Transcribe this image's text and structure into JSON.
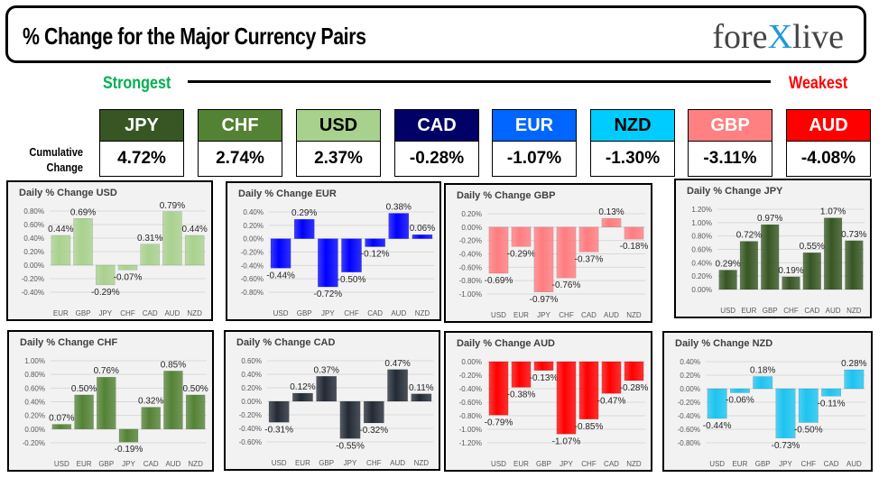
{
  "header": {
    "title": "% Change for the Major Currency Pairs",
    "logo": "forexlive"
  },
  "ranking": {
    "strongest_label": "Strongest",
    "weakest_label": "Weakest",
    "cumulative_label_1": "Cumulative",
    "cumulative_label_2": "Change",
    "currencies": [
      {
        "code": "JPY",
        "value": "4.72%",
        "color": "#375623",
        "text": "#ffffff"
      },
      {
        "code": "CHF",
        "value": "2.74%",
        "color": "#548235",
        "text": "#ffffff"
      },
      {
        "code": "USD",
        "value": "2.37%",
        "color": "#a9d18e",
        "text": "#000000"
      },
      {
        "code": "CAD",
        "value": "-0.28%",
        "color": "#000066",
        "text": "#ffffff"
      },
      {
        "code": "EUR",
        "value": "-1.07%",
        "color": "#0066ff",
        "text": "#ffffff"
      },
      {
        "code": "NZD",
        "value": "-1.30%",
        "color": "#00ccff",
        "text": "#000000"
      },
      {
        "code": "GBP",
        "value": "-3.11%",
        "color": "#ff8080",
        "text": "#ffffff"
      },
      {
        "code": "AUD",
        "value": "-4.08%",
        "color": "#ff0000",
        "text": "#ffffff"
      }
    ]
  },
  "chart_data": [
    {
      "type": "bar",
      "title": "Daily % Change USD",
      "categories": [
        "EUR",
        "GBP",
        "JPY",
        "CHF",
        "CAD",
        "AUD",
        "NZD"
      ],
      "values": [
        0.44,
        0.69,
        -0.29,
        -0.07,
        0.31,
        0.79,
        0.44
      ],
      "ylim": [
        -0.4,
        0.8
      ],
      "ystep": 0.2,
      "color": "#a9d18e",
      "grid": true
    },
    {
      "type": "bar",
      "title": "Daily % Change EUR",
      "categories": [
        "USD",
        "GBP",
        "JPY",
        "CHF",
        "CAD",
        "AUD",
        "NZD"
      ],
      "values": [
        -0.44,
        0.29,
        -0.72,
        -0.5,
        -0.12,
        0.38,
        0.06
      ],
      "ylim": [
        -0.8,
        0.4
      ],
      "ystep": 0.2,
      "color": "#0000ff",
      "grid": true
    },
    {
      "type": "bar",
      "title": "Daily % Change GBP",
      "categories": [
        "USD",
        "EUR",
        "JPY",
        "CHF",
        "CAD",
        "AUD",
        "NZD"
      ],
      "values": [
        -0.69,
        -0.29,
        -0.97,
        -0.76,
        -0.37,
        0.13,
        -0.18
      ],
      "ylim": [
        -1.0,
        0.2
      ],
      "ystep": 0.2,
      "color": "#ff7c80",
      "grid": true
    },
    {
      "type": "bar",
      "title": "Daily % Change JPY",
      "categories": [
        "USD",
        "EUR",
        "GBP",
        "CHF",
        "CAD",
        "AUD",
        "NZD"
      ],
      "values": [
        0.29,
        0.72,
        0.97,
        0.19,
        0.55,
        1.07,
        0.73
      ],
      "ylim": [
        0,
        1.2
      ],
      "ystep": 0.2,
      "color": "#375623",
      "grid": true
    },
    {
      "type": "bar",
      "title": "Daily % Change CHF",
      "categories": [
        "USD",
        "EUR",
        "GBP",
        "JPY",
        "CAD",
        "AUD",
        "NZD"
      ],
      "values": [
        0.07,
        0.5,
        0.76,
        -0.19,
        0.32,
        0.85,
        0.5
      ],
      "ylim": [
        -0.2,
        1.0
      ],
      "ystep": 0.2,
      "color": "#548235",
      "grid": true
    },
    {
      "type": "bar",
      "title": "Daily % Change CAD",
      "categories": [
        "USD",
        "EUR",
        "GBP",
        "JPY",
        "CHF",
        "AUD",
        "NZD"
      ],
      "values": [
        -0.31,
        0.12,
        0.37,
        -0.55,
        -0.32,
        0.47,
        0.11
      ],
      "ylim": [
        -0.6,
        0.6
      ],
      "ystep": 0.2,
      "color": "#222a35",
      "grid": true
    },
    {
      "type": "bar",
      "title": "Daily % Change AUD",
      "categories": [
        "USD",
        "EUR",
        "GBP",
        "JPY",
        "CHF",
        "CAD",
        "NZD"
      ],
      "values": [
        -0.79,
        -0.38,
        -0.13,
        -1.07,
        -0.85,
        -0.47,
        -0.28
      ],
      "ylim": [
        -1.2,
        0
      ],
      "ystep": 0.2,
      "color": "#ff0000",
      "grid": true
    },
    {
      "type": "bar",
      "title": "Daily % Change NZD",
      "categories": [
        "USD",
        "EUR",
        "GBP",
        "JPY",
        "CHF",
        "CAD",
        "AUD"
      ],
      "values": [
        -0.44,
        -0.06,
        0.18,
        -0.73,
        -0.5,
        -0.11,
        0.28
      ],
      "ylim": [
        -0.8,
        0.4
      ],
      "ystep": 0.2,
      "color": "#1cc4f0",
      "grid": true
    }
  ]
}
